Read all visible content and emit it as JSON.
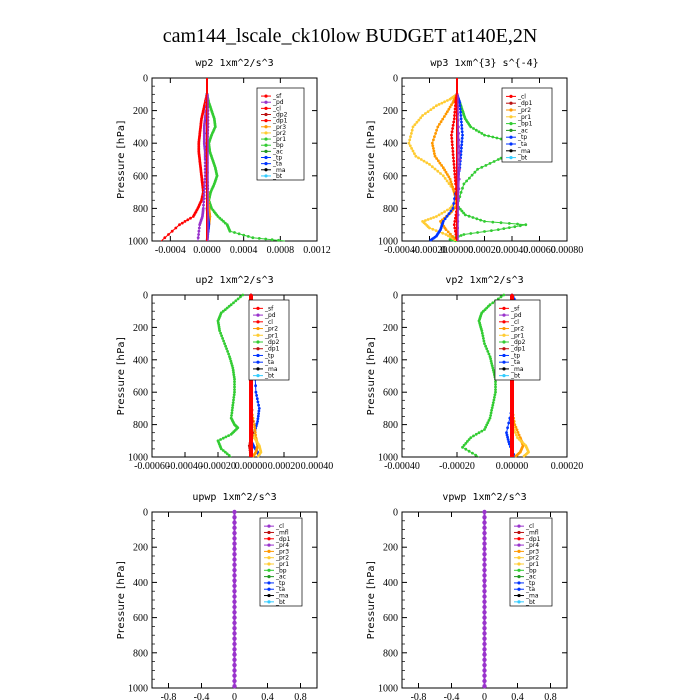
{
  "title": "cam144_lscale_ck10low  BUDGET at140E,2N",
  "colors": {
    "red": "#ff0000",
    "darkred": "#bb1111",
    "purple": "#9933cc",
    "orange": "#ff9900",
    "yellow": "#ffcc33",
    "green": "#33cc33",
    "darkgreen": "#229922",
    "blue": "#0033ff",
    "cyan": "#33ccff",
    "black": "#000000"
  },
  "chart_data": [
    {
      "type": "line",
      "title": "wp2  1xm^2/s^3",
      "ylabel": "Pressure [hPa]",
      "xlim": [
        -0.0006,
        0.0012
      ],
      "ylim": [
        1000,
        0
      ],
      "xticks": [
        "-0.0004",
        "0.0000",
        "0.0004",
        "0.0008",
        "0.0012"
      ],
      "xtick_values": [
        -0.0004,
        0.0,
        0.0004,
        0.0008,
        0.0012
      ],
      "yticks": [
        0,
        200,
        400,
        600,
        800,
        1000
      ],
      "legend": [
        "_sf",
        "_pd",
        "_cl",
        "_dp2",
        "_dp1",
        "_pr3",
        "_pr2",
        "_pr1",
        "_bp",
        "_ac",
        "_tp",
        "_ta",
        "_ma",
        "_bt"
      ],
      "legend_colors": [
        "red",
        "purple",
        "red",
        "darkred",
        "red",
        "orange",
        "yellow",
        "green",
        "green",
        "darkgreen",
        "blue",
        "blue",
        "black",
        "cyan"
      ],
      "series": [
        {
          "color": "green",
          "x": [
            0,
            2e-05,
            5e-05,
            8e-05,
            9e-05,
            5e-05,
            2e-05,
            3e-05,
            6e-05,
            9e-05,
            0.00011,
            8e-05,
            4e-05,
            2e-05,
            5e-05,
            0.00012,
            0.00022,
            0.00025,
            0.0005,
            0.00085
          ],
          "y": [
            100,
            150,
            200,
            250,
            300,
            350,
            400,
            450,
            500,
            550,
            600,
            650,
            700,
            750,
            800,
            850,
            900,
            940,
            980,
            1000
          ]
        },
        {
          "color": "red",
          "x": [
            0,
            -2e-05,
            -4e-05,
            -6e-05,
            -7e-05,
            -8e-05,
            -9e-05,
            -9e-05,
            -8e-05,
            -7e-05,
            -6e-05,
            -5e-05,
            -4e-05,
            -6e-05,
            -0.0001,
            -0.00015,
            -0.0003,
            -0.0005
          ],
          "y": [
            100,
            150,
            200,
            250,
            300,
            350,
            400,
            450,
            500,
            550,
            600,
            650,
            700,
            750,
            800,
            850,
            900,
            1000
          ]
        },
        {
          "color": "purple",
          "x": [
            0,
            -1e-05,
            -2e-05,
            -3e-05,
            -3e-05,
            -3e-05,
            -2e-05,
            -2e-05,
            -2e-05,
            -3e-05,
            -4e-05,
            -5e-05,
            -8e-05,
            -0.0001
          ],
          "y": [
            100,
            200,
            250,
            300,
            350,
            400,
            450,
            500,
            600,
            700,
            800,
            850,
            900,
            1000
          ]
        },
        {
          "color": "darkred",
          "x": [
            0,
            1e-05,
            1e-05,
            0.0,
            0.0,
            0.0,
            1e-05,
            2e-05,
            3e-05,
            2e-05,
            0.0
          ],
          "y": [
            100,
            200,
            300,
            400,
            500,
            600,
            700,
            800,
            850,
            900,
            1000
          ]
        },
        {
          "color": "orange",
          "x": [
            0,
            0,
            1e-05,
            2e-05,
            3e-05,
            2e-05,
            0.0
          ],
          "y": [
            100,
            400,
            700,
            800,
            850,
            900,
            1000
          ]
        },
        {
          "color": "blue",
          "x": [
            0,
            0,
            0,
            1e-05,
            2e-05,
            1e-05,
            0.0
          ],
          "y": [
            100,
            500,
            800,
            850,
            900,
            950,
            1000
          ]
        }
      ]
    },
    {
      "type": "line",
      "title": "wp3  1xm^{3} s^{-4}",
      "ylabel": "Pressure [hPa]",
      "xlim": [
        -0.0004,
        0.0008
      ],
      "ylim": [
        1000,
        0
      ],
      "xticks": [
        "-0.00040",
        "-0.00020",
        "0.00000",
        "0.00020",
        "0.00040",
        "0.00060",
        "0.00080"
      ],
      "xtick_values": [
        -0.0004,
        -0.0002,
        0.0,
        0.0002,
        0.0004,
        0.0006,
        0.0008
      ],
      "yticks": [
        0,
        200,
        400,
        600,
        800,
        1000
      ],
      "legend": [
        "_cl",
        "_dp1",
        "_pr2",
        "_pr1",
        "_bp1",
        "_ac",
        "_tp",
        "_ta",
        "_ma",
        "_bt"
      ],
      "legend_colors": [
        "red",
        "darkred",
        "orange",
        "yellow",
        "green",
        "darkgreen",
        "blue",
        "blue",
        "black",
        "cyan"
      ],
      "series": [
        {
          "color": "green",
          "x": [
            0.0,
            2e-05,
            4e-05,
            6e-05,
            0.0001,
            0.0002,
            0.00035,
            0.00045,
            0.0004,
            0.0003,
            0.00015,
            5e-05,
            0.0,
            6e-05,
            0.0002,
            0.0005,
            0.0003,
            5e-05,
            -5e-05,
            0.0
          ],
          "y": [
            100,
            150,
            200,
            250,
            300,
            350,
            380,
            420,
            460,
            500,
            560,
            650,
            780,
            840,
            880,
            900,
            930,
            960,
            990,
            1000
          ]
        },
        {
          "color": "yellow",
          "x": [
            0.0,
            -5e-05,
            -0.00015,
            -0.00025,
            -0.00032,
            -0.00035,
            -0.0003,
            -0.0002,
            -0.0001,
            -3e-05,
            0.0,
            -5e-05,
            -0.00015,
            -0.00025,
            -0.0002,
            -8e-05,
            0.0
          ],
          "y": [
            100,
            130,
            170,
            230,
            300,
            400,
            480,
            530,
            600,
            680,
            750,
            800,
            850,
            880,
            920,
            960,
            1000
          ]
        },
        {
          "color": "orange",
          "x": [
            0.0,
            -3e-05,
            -8e-05,
            -0.00014,
            -0.00018,
            -0.00016,
            -0.0001,
            -5e-05,
            -2e-05,
            0.0,
            -5e-05,
            -0.00012,
            -8e-05,
            0.0
          ],
          "y": [
            100,
            150,
            220,
            300,
            400,
            480,
            550,
            620,
            700,
            780,
            830,
            880,
            930,
            1000
          ]
        },
        {
          "color": "blue",
          "x": [
            0.0,
            2e-05,
            3e-05,
            4e-05,
            3e-05,
            2e-05,
            0.0,
            -3e-05,
            -0.0001,
            -0.00012,
            -0.00015,
            -0.0002
          ],
          "y": [
            100,
            150,
            250,
            350,
            450,
            550,
            650,
            800,
            880,
            930,
            970,
            1000
          ]
        },
        {
          "color": "red",
          "x": [
            0.0,
            -1e-05,
            -2e-05,
            -4e-05,
            -3e-05,
            -2e-05,
            -1e-05,
            0.0,
            -2e-05,
            0.0
          ],
          "y": [
            100,
            150,
            250,
            350,
            450,
            550,
            650,
            800,
            900,
            1000
          ]
        },
        {
          "color": "purple",
          "x": [
            0.0,
            1e-05,
            2e-05,
            1e-05,
            0.0
          ],
          "y": [
            100,
            300,
            500,
            800,
            1000
          ]
        }
      ]
    },
    {
      "type": "line",
      "title": "up2  1xm^2/s^3",
      "ylabel": "Pressure [hPa]",
      "xlim": [
        -0.0006,
        0.0004
      ],
      "ylim": [
        1000,
        0
      ],
      "xticks": [
        "-0.00060",
        "-0.00040",
        "-0.00020",
        "0.00000",
        "0.00020",
        "0.00040"
      ],
      "xtick_values": [
        -0.0006,
        -0.0004,
        -0.0002,
        0.0,
        0.0002,
        0.0004
      ],
      "yticks": [
        0,
        200,
        400,
        600,
        800,
        1000
      ],
      "legend": [
        "_sf",
        "_pd",
        "_cl",
        "_pr2",
        "_pr1",
        "_dp2",
        "_dp1",
        "_tp",
        "_ta",
        "_ma",
        "_bt"
      ],
      "legend_colors": [
        "red",
        "purple",
        "red",
        "orange",
        "yellow",
        "green",
        "darkred",
        "blue",
        "blue",
        "black",
        "cyan"
      ],
      "series": [
        {
          "color": "green",
          "x": [
            -5e-05,
            -0.00012,
            -0.00018,
            -0.0002,
            -0.00019,
            -0.00016,
            -0.00013,
            -0.00011,
            -0.0001,
            -0.0001,
            -0.00011,
            -0.00012,
            -0.0001,
            -8e-05,
            -0.00012,
            -0.0002,
            -0.00018,
            -0.00012
          ],
          "y": [
            0,
            60,
            110,
            160,
            220,
            300,
            380,
            450,
            520,
            600,
            680,
            760,
            800,
            820,
            860,
            900,
            950,
            1000
          ]
        },
        {
          "color": "blue",
          "x": [
            0.0,
            1e-05,
            1e-05,
            2e-05,
            3e-05,
            5e-05,
            4e-05,
            2e-05,
            0.0,
            2e-05,
            4e-05,
            5e-05
          ],
          "y": [
            0,
            100,
            200,
            400,
            600,
            700,
            780,
            850,
            900,
            940,
            970,
            1000
          ]
        },
        {
          "color": "orange",
          "x": [
            0.0,
            2e-05,
            3e-05,
            4e-05,
            3e-05,
            1e-05
          ],
          "y": [
            700,
            800,
            880,
            930,
            970,
            1000
          ]
        },
        {
          "color": "yellow",
          "x": [
            0.0,
            2e-05,
            5e-05,
            6e-05,
            4e-05
          ],
          "y": [
            800,
            880,
            930,
            970,
            1000
          ]
        },
        {
          "color": "darkred",
          "x": [
            0.0,
            0.0,
            1e-05,
            -1e-05,
            0.0
          ],
          "y": [
            0,
            500,
            850,
            930,
            1000
          ]
        },
        {
          "color": "red",
          "x": [
            0.0,
            0.0,
            0.0,
            0.0
          ],
          "y": [
            0,
            300,
            700,
            1000
          ]
        }
      ]
    },
    {
      "type": "line",
      "title": "vp2  1xm^2/s^3",
      "ylabel": "Pressure [hPa]",
      "xlim": [
        -0.0004,
        0.0002
      ],
      "ylim": [
        1000,
        0
      ],
      "xticks": [
        "-0.00040",
        "-0.00020",
        "0.00000",
        "0.00020"
      ],
      "xtick_values": [
        -0.0004,
        -0.0002,
        0.0,
        0.0002
      ],
      "yticks": [
        0,
        200,
        400,
        600,
        800,
        1000
      ],
      "legend": [
        "_sf",
        "_pd",
        "_cl",
        "_pr2",
        "_pr1",
        "_dp2",
        "_dp1",
        "_tp",
        "_ta",
        "_ma",
        "_bt"
      ],
      "legend_colors": [
        "red",
        "purple",
        "red",
        "orange",
        "yellow",
        "green",
        "darkred",
        "blue",
        "blue",
        "black",
        "cyan"
      ],
      "series": [
        {
          "color": "green",
          "x": [
            -3e-05,
            -8e-05,
            -0.00011,
            -0.00012,
            -0.00011,
            -0.0001,
            -8e-05,
            -7e-05,
            -6e-05,
            -6e-05,
            -7e-05,
            -8e-05,
            -0.0001,
            -0.00015,
            -0.00018,
            -0.00012
          ],
          "y": [
            0,
            60,
            110,
            160,
            220,
            300,
            380,
            450,
            520,
            600,
            680,
            760,
            830,
            880,
            940,
            1000
          ]
        },
        {
          "color": "blue",
          "x": [
            0.0,
            2e-05,
            6e-05,
            7e-05,
            5e-05,
            3e-05,
            1e-05,
            0.0,
            0.0,
            -2e-05,
            -1e-05,
            1e-05
          ],
          "y": [
            0,
            60,
            120,
            160,
            200,
            260,
            350,
            500,
            700,
            850,
            920,
            1000
          ]
        },
        {
          "color": "orange",
          "x": [
            0.0,
            1e-05,
            3e-05,
            4e-05,
            3e-05,
            1e-05
          ],
          "y": [
            700,
            800,
            880,
            930,
            970,
            1000
          ]
        },
        {
          "color": "yellow",
          "x": [
            0.0,
            2e-05,
            5e-05,
            6e-05,
            4e-05
          ],
          "y": [
            800,
            880,
            930,
            970,
            1000
          ]
        },
        {
          "color": "red",
          "x": [
            0.0,
            0.0,
            0.0,
            0.0
          ],
          "y": [
            0,
            300,
            700,
            1000
          ]
        }
      ]
    },
    {
      "type": "line",
      "title": "upwp  1xm^2/s^3",
      "ylabel": "Pressure [hPa]",
      "xlim": [
        -1.0,
        1.0
      ],
      "ylim": [
        1000,
        0
      ],
      "xticks": [
        "-0.8",
        "-0.4",
        "0",
        "0.4",
        "0.8"
      ],
      "xtick_values": [
        -0.8,
        -0.4,
        0.0,
        0.4,
        0.8
      ],
      "yticks": [
        0,
        200,
        400,
        600,
        800,
        1000
      ],
      "legend": [
        "_cl",
        "_mfl",
        "_dp1",
        "_pr4",
        "_pr3",
        "_pr2",
        "_pr1",
        "_bp",
        "_ac",
        "_tp",
        "_ta",
        "_ma",
        "_bt"
      ],
      "legend_colors": [
        "purple",
        "darkred",
        "red",
        "purple",
        "orange",
        "yellow",
        "yellow",
        "green",
        "darkgreen",
        "blue",
        "blue",
        "black",
        "cyan"
      ],
      "series": [
        {
          "color": "purple",
          "x": [
            0.0,
            0.0
          ],
          "y": [
            0,
            1000
          ]
        }
      ]
    },
    {
      "type": "line",
      "title": "vpwp  1xm^2/s^3",
      "ylabel": "Pressure [hPa]",
      "xlim": [
        -1.0,
        1.0
      ],
      "ylim": [
        1000,
        0
      ],
      "xticks": [
        "-0.8",
        "-0.4",
        "0",
        "0.4",
        "0.8"
      ],
      "xtick_values": [
        -0.8,
        -0.4,
        0.0,
        0.4,
        0.8
      ],
      "yticks": [
        0,
        200,
        400,
        600,
        800,
        1000
      ],
      "legend": [
        "_cl",
        "_mfl",
        "_dp1",
        "_pr4",
        "_pr3",
        "_pr2",
        "_pr1",
        "_bp",
        "_ac",
        "_tp",
        "_ta",
        "_ma",
        "_bt"
      ],
      "legend_colors": [
        "purple",
        "darkred",
        "red",
        "purple",
        "orange",
        "yellow",
        "yellow",
        "green",
        "darkgreen",
        "blue",
        "blue",
        "black",
        "cyan"
      ],
      "series": [
        {
          "color": "purple",
          "x": [
            0.0,
            0.0
          ],
          "y": [
            0,
            1000
          ]
        }
      ]
    }
  ]
}
